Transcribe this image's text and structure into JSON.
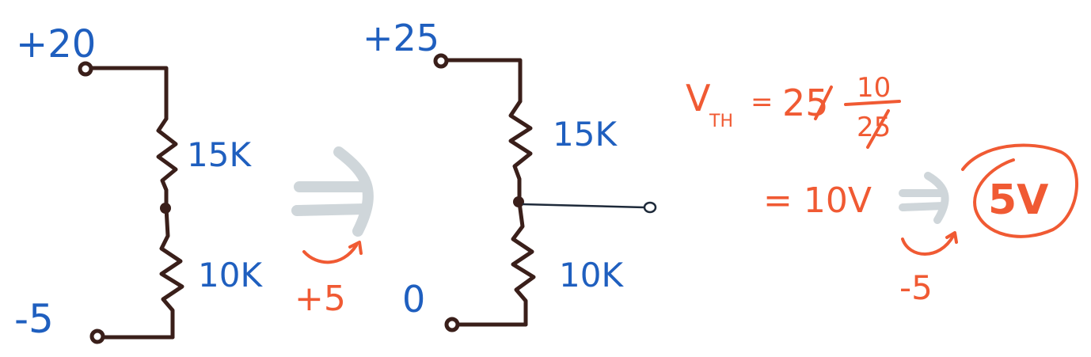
{
  "left_circuit": {
    "top_voltage": "+20",
    "bottom_voltage": "-5",
    "top_resistor": "15K",
    "bottom_resistor": "10K"
  },
  "shift_1": {
    "label": "+5"
  },
  "right_circuit": {
    "top_voltage": "+25",
    "bottom_voltage": "0",
    "top_resistor": "15K",
    "bottom_resistor": "10K"
  },
  "thevenin": {
    "v_symbol": "V",
    "v_subscript": "TH",
    "equals": "=",
    "value": "25",
    "numerator": "10",
    "denominator": "25",
    "result": "= 10V"
  },
  "shift_2": {
    "label": "-5"
  },
  "final_answer": "5V",
  "colors": {
    "blue": "#1f5fbf",
    "orange": "#f05a33",
    "wire": "#3a1f1a",
    "arrow_gray": "#cfd6da"
  }
}
